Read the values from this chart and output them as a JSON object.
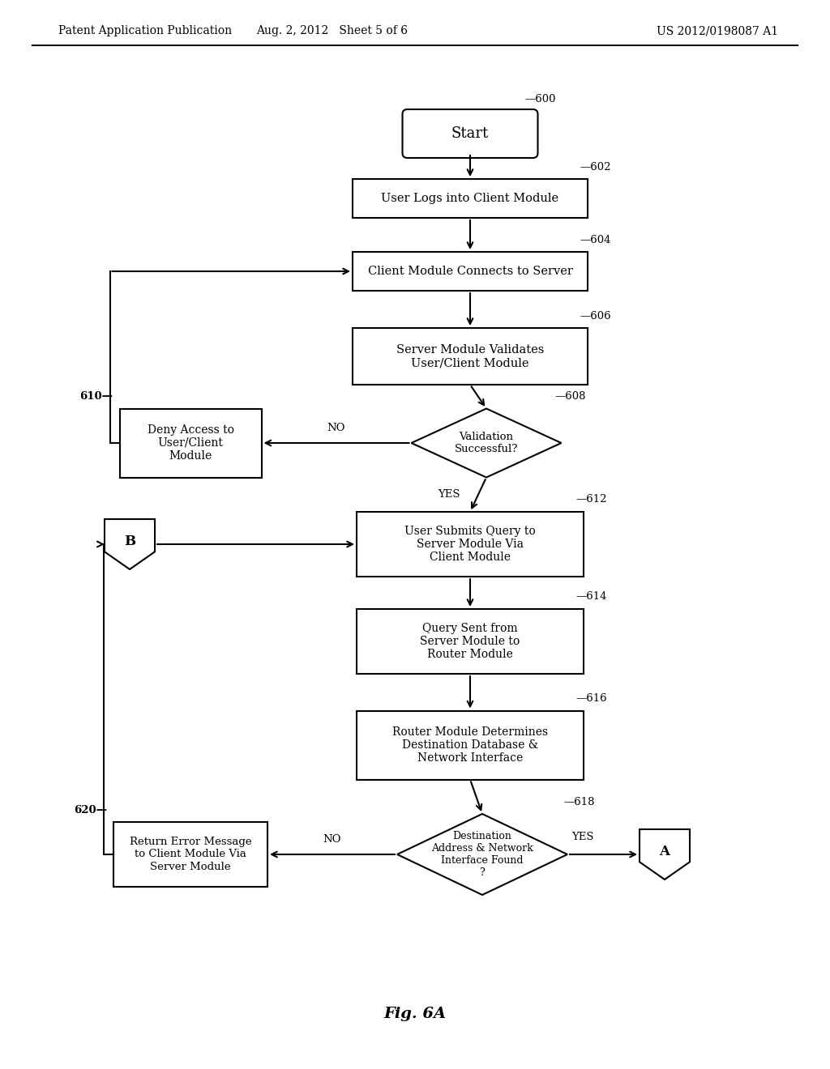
{
  "header_left": "Patent Application Publication",
  "header_mid": "Aug. 2, 2012   Sheet 5 of 6",
  "header_right": "US 2012/0198087 A1",
  "figure_label": "Fig. 6A",
  "bg_color": "#ffffff",
  "lw": 1.5
}
